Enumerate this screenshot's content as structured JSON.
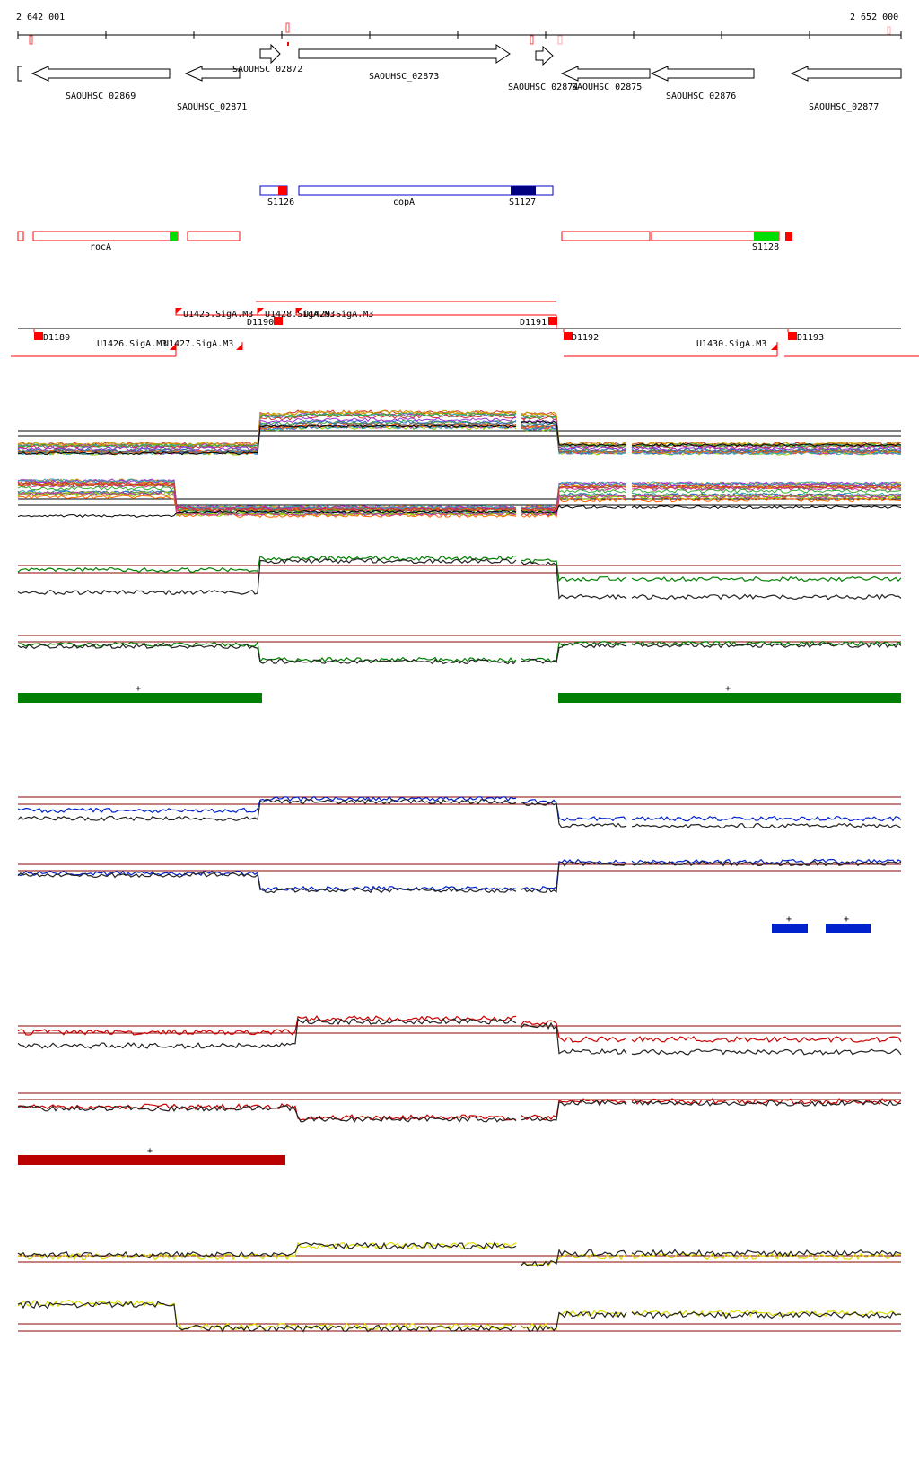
{
  "axis": {
    "start_label": "2 642 001",
    "end_label": "2 652 000"
  },
  "genes": [
    {
      "name": "SAOUHSC_02869",
      "strand": "-"
    },
    {
      "name": "SAOUHSC_02871",
      "strand": "-"
    },
    {
      "name": "SAOUHSC_02872",
      "strand": "+"
    },
    {
      "name": "SAOUHSC_02873",
      "strand": "+"
    },
    {
      "name": "SAOUHSC_02874",
      "strand": "+"
    },
    {
      "name": "SAOUHSC_02875",
      "strand": "-"
    },
    {
      "name": "SAOUHSC_02876",
      "strand": "-"
    },
    {
      "name": "SAOUHSC_02877",
      "strand": "-"
    }
  ],
  "features_plus": [
    {
      "label": "S1126"
    },
    {
      "label": "copA"
    },
    {
      "label": "S1127"
    }
  ],
  "features_minus": [
    {
      "label": "rocA"
    },
    {
      "label": "S1128"
    }
  ],
  "promoters": [
    {
      "label": "U1425.SigA.M3"
    },
    {
      "label": "U1428.SigA.M3"
    },
    {
      "label": "U1429.SigA.M3"
    },
    {
      "label": "U1426.SigA.M3"
    },
    {
      "label": "U1427.SigA.M3"
    },
    {
      "label": "U1430.SigA.M3"
    }
  ],
  "terminators": [
    {
      "label": "D1189"
    },
    {
      "label": "D1190"
    },
    {
      "label": "D1191"
    },
    {
      "label": "D1192"
    },
    {
      "label": "D1193"
    }
  ],
  "segment_marks": [
    {
      "label": "+"
    },
    {
      "label": "+"
    },
    {
      "label": "+"
    },
    {
      "label": "+"
    },
    {
      "label": "+"
    }
  ],
  "colors": {
    "gene_outline": "#000000",
    "feature_plus": "#0000cc",
    "feature_plus_fill": "#000080",
    "feature_minus": "#ff0000",
    "feature_minus_tag": "#00dd00",
    "green_track": "#008000",
    "blue_track": "#0000cc",
    "red_track": "#cc0000",
    "yellow_track": "#dddd00",
    "threshold_line": "#8b0000"
  }
}
